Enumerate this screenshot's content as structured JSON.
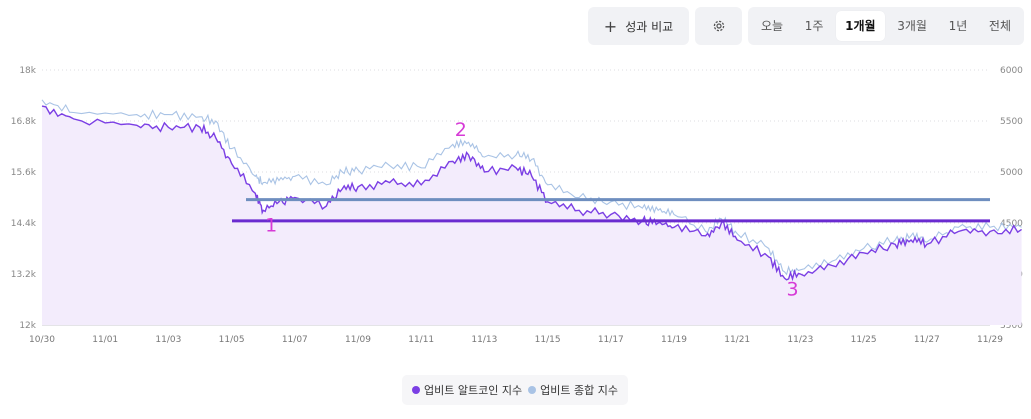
{
  "toolbar": {
    "compare_label": "성과 비교",
    "compare_icon": "plus-icon",
    "settings_icon": "gear-icon",
    "ranges": [
      "오늘",
      "1주",
      "1개월",
      "3개월",
      "1년",
      "전체"
    ],
    "active_range": "1개월"
  },
  "chart_data": {
    "type": "line",
    "x_ticks": [
      "10/30",
      "11/01",
      "11/03",
      "11/05",
      "11/07",
      "11/09",
      "11/11",
      "11/13",
      "11/15",
      "11/17",
      "11/19",
      "11/21",
      "11/23",
      "11/25",
      "11/27",
      "11/29"
    ],
    "y_left_ticks": [
      "12k",
      "13.2k",
      "14.4k",
      "15.6k",
      "16.8k",
      "18k"
    ],
    "y_right_ticks": [
      "3500",
      "4000",
      "4500",
      "5000",
      "5500",
      "6000"
    ],
    "y_left_range": [
      12000,
      18000
    ],
    "y_right_range": [
      3500,
      6000
    ],
    "grid": true,
    "legend_position": "bottom-center",
    "series": [
      {
        "name": "업비트 알트코인 지수",
        "axis": "left",
        "color": "#7b3fe4",
        "fill": "#f3ecfc",
        "x": [
          "10/30",
          "10/31",
          "11/01",
          "11/02",
          "11/03",
          "11/03 12h",
          "11/04",
          "11/04 18h",
          "11/05",
          "11/05 12h",
          "11/06",
          "11/07",
          "11/07 12h",
          "11/08",
          "11/09",
          "11/10",
          "11/11",
          "11/11 12h",
          "11/12",
          "11/13",
          "11/13 12h",
          "11/14",
          "11/15",
          "11/16",
          "11/17",
          "11/17 12h",
          "11/18",
          "11/19",
          "11/19 12h",
          "11/20",
          "11/21",
          "11/21 12h",
          "11/22",
          "11/23",
          "11/24",
          "11/25",
          "11/25 12h",
          "11/26",
          "11/27",
          "11/28",
          "11/29"
        ],
        "y": [
          17150,
          16850,
          16700,
          16650,
          16650,
          16400,
          15800,
          15100,
          14700,
          14900,
          15000,
          14800,
          15200,
          15250,
          15350,
          15300,
          15850,
          16000,
          15600,
          15700,
          15500,
          14900,
          14700,
          14600,
          14450,
          14400,
          14300,
          14100,
          14400,
          14000,
          13600,
          13100,
          13200,
          13400,
          13700,
          13900,
          14000,
          13900,
          14200,
          14200,
          14250
        ]
      },
      {
        "name": "업비트 종합 지수",
        "axis": "left",
        "color": "#a9c3e5",
        "x": [
          "10/30",
          "10/31",
          "11/01",
          "11/02",
          "11/03",
          "11/03 12h",
          "11/04",
          "11/04 18h",
          "11/05",
          "11/05 12h",
          "11/06",
          "11/07",
          "11/07 12h",
          "11/08",
          "11/09",
          "11/10",
          "11/11",
          "11/11 12h",
          "11/12",
          "11/13",
          "11/13 12h",
          "11/14",
          "11/15",
          "11/16",
          "11/17",
          "11/17 12h",
          "11/18",
          "11/19",
          "11/19 12h",
          "11/20",
          "11/21",
          "11/21 12h",
          "11/22",
          "11/23",
          "11/24",
          "11/25",
          "11/25 12h",
          "11/26",
          "11/27",
          "11/28",
          "11/29"
        ],
        "y": [
          17300,
          17000,
          16950,
          16950,
          16900,
          16800,
          16150,
          15500,
          15350,
          15400,
          15500,
          15300,
          15600,
          15650,
          15750,
          15700,
          16250,
          16300,
          15950,
          16000,
          15900,
          15300,
          15000,
          14900,
          14750,
          14700,
          14600,
          14200,
          14500,
          14150,
          13800,
          13250,
          13300,
          13500,
          13800,
          14000,
          14100,
          13950,
          14300,
          14300,
          14300
        ]
      }
    ],
    "reference_lines": [
      {
        "value": 14950,
        "axis": "left",
        "color": "#6e8ebf"
      },
      {
        "value": 14450,
        "axis": "left",
        "color": "#6a2bd0"
      }
    ],
    "annotations": [
      {
        "text": "1",
        "x": "11/05",
        "y": 14200,
        "color": "#d63ad6"
      },
      {
        "text": "2",
        "x": "11/11",
        "y": 16450,
        "color": "#d63ad6"
      },
      {
        "text": "3",
        "x": "11/21 12h",
        "y": 12700,
        "color": "#d63ad6"
      }
    ]
  }
}
